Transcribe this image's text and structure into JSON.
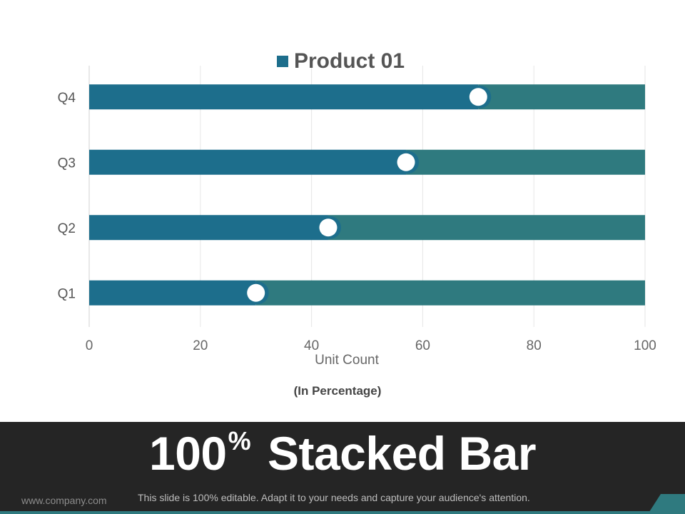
{
  "chart_data": {
    "type": "bar",
    "orientation": "horizontal",
    "stacked": true,
    "categories": [
      "Q1",
      "Q2",
      "Q3",
      "Q4"
    ],
    "series": [
      {
        "name": "Product 01",
        "values": [
          30,
          43,
          57,
          70
        ],
        "color": "#1d6e8c"
      },
      {
        "name": "",
        "values": [
          70,
          57,
          43,
          30
        ],
        "color": "#2f7a7f"
      }
    ],
    "marker_values": [
      30,
      43,
      57,
      70
    ],
    "xlabel": "Unit Count",
    "xlim": [
      0,
      100
    ],
    "xticks": [
      "0",
      "20",
      "40",
      "60",
      "80",
      "100"
    ],
    "grid": true,
    "legend": "top",
    "legend_label": "Product 01"
  },
  "subtitle": "(In Percentage)",
  "footer": {
    "title_main": "100",
    "title_sup": "%",
    "title_rest": "Stacked Bar",
    "url": "www.company.com",
    "caption": "This slide is 100% editable. Adapt it to your needs and capture your audience's attention."
  }
}
